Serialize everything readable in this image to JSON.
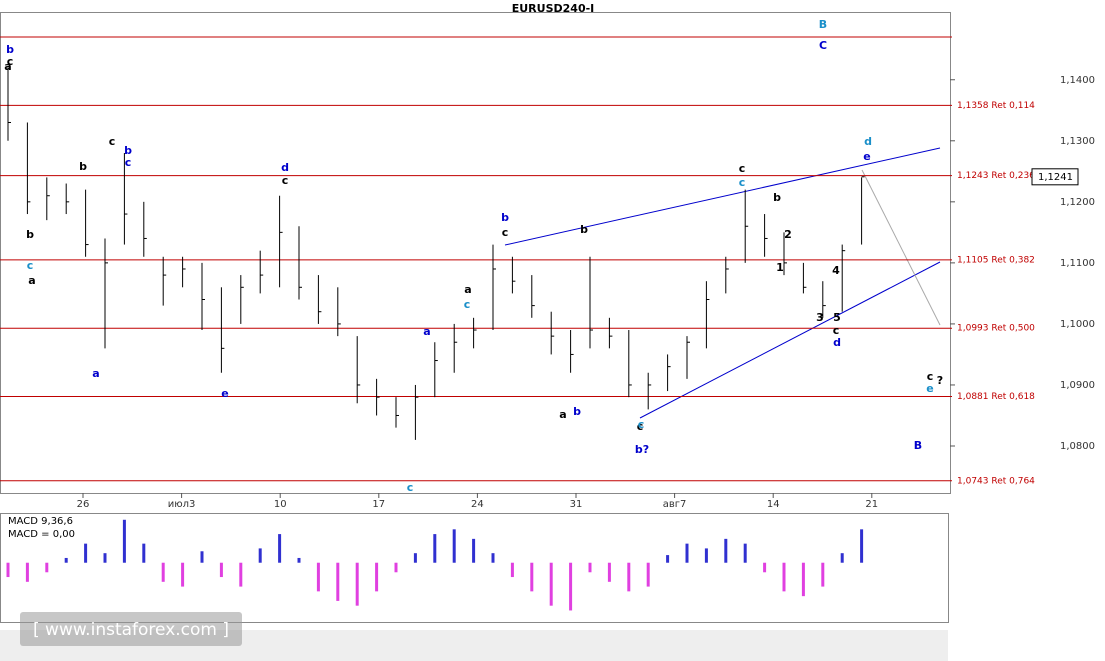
{
  "chart_data": {
    "type": "ohlc",
    "title": "EURUSD240-I",
    "ylim": [
      1.0723,
      1.1511
    ],
    "yticks": [
      {
        "value": 1.14,
        "label": "1,1400"
      },
      {
        "value": 1.13,
        "label": "1,1300"
      },
      {
        "value": 1.12,
        "label": "1,1200"
      },
      {
        "value": 1.11,
        "label": "1,1100"
      },
      {
        "value": 1.1,
        "label": "1,1000"
      },
      {
        "value": 1.09,
        "label": "1,0900"
      },
      {
        "value": 1.08,
        "label": "1,0800"
      }
    ],
    "categories": [
      "26",
      "июл3",
      "10",
      "17",
      "24",
      "31",
      "авг7",
      "14",
      "21"
    ],
    "high": [
      1.142,
      1.133,
      1.124,
      1.123,
      1.122,
      1.114,
      1.128,
      1.12,
      1.111,
      1.111,
      1.11,
      1.106,
      1.108,
      1.112,
      1.121,
      1.116,
      1.108,
      1.106,
      1.098,
      1.091,
      1.088,
      1.09,
      1.097,
      1.1,
      1.101,
      1.113,
      1.111,
      1.108,
      1.102,
      1.099,
      1.111,
      1.101,
      1.099,
      1.092,
      1.095,
      1.098,
      1.107,
      1.111,
      1.122,
      1.118,
      1.115,
      1.11,
      1.107,
      1.113,
      1.124
    ],
    "low": [
      1.13,
      1.118,
      1.117,
      1.118,
      1.111,
      1.096,
      1.113,
      1.111,
      1.103,
      1.106,
      1.099,
      1.092,
      1.1,
      1.105,
      1.106,
      1.104,
      1.1,
      1.098,
      1.087,
      1.085,
      1.083,
      1.081,
      1.088,
      1.092,
      1.096,
      1.099,
      1.105,
      1.101,
      1.095,
      1.092,
      1.096,
      1.096,
      1.088,
      1.086,
      1.089,
      1.091,
      1.096,
      1.105,
      1.11,
      1.111,
      1.108,
      1.105,
      1.101,
      1.102,
      1.113
    ],
    "close": [
      1.133,
      1.12,
      1.121,
      1.12,
      1.113,
      1.11,
      1.118,
      1.114,
      1.108,
      1.109,
      1.104,
      1.096,
      1.106,
      1.108,
      1.115,
      1.106,
      1.102,
      1.1,
      1.09,
      1.088,
      1.085,
      1.088,
      1.094,
      1.097,
      1.099,
      1.109,
      1.107,
      1.103,
      1.098,
      1.095,
      1.099,
      1.098,
      1.09,
      1.09,
      1.093,
      1.097,
      1.104,
      1.109,
      1.116,
      1.114,
      1.11,
      1.106,
      1.103,
      1.112,
      1.1241
    ],
    "levels": [
      {
        "value": 1.147
      },
      {
        "value": 1.1358,
        "label": "1,1358 Ret 0,114"
      },
      {
        "value": 1.1243,
        "label": "1,1243 Ret 0,236"
      },
      {
        "value": 1.1105,
        "label": "1,1105 Ret 0,382"
      },
      {
        "value": 1.0993,
        "label": "1,0993 Ret 0,500"
      },
      {
        "value": 1.0881,
        "label": "1,0881 Ret 0,618"
      },
      {
        "value": 1.0743,
        "label": "1,0743 Ret 0,764"
      }
    ],
    "current_price": {
      "value": 1.1241,
      "label": "1,1241"
    },
    "macd_title": "MACD 9,36,6",
    "macd_value": "MACD = 0,00",
    "macd_ylim": [
      -0.006,
      0.005
    ],
    "macd": [
      -0.0015,
      -0.002,
      -0.001,
      0.0005,
      0.002,
      0.001,
      0.0045,
      0.002,
      -0.002,
      -0.0025,
      0.0012,
      -0.0015,
      -0.0025,
      0.0015,
      0.003,
      0.0005,
      -0.003,
      -0.004,
      -0.0045,
      -0.003,
      -0.001,
      0.001,
      0.003,
      0.0035,
      0.0025,
      0.001,
      -0.0015,
      -0.003,
      -0.0045,
      -0.005,
      -0.001,
      -0.002,
      -0.003,
      -0.0025,
      0.0008,
      0.002,
      0.0015,
      0.0025,
      0.002,
      -0.001,
      -0.003,
      -0.0035,
      -0.0025,
      0.001,
      0.0035
    ],
    "waves": [
      {
        "text": "b",
        "color": "#0000cc"
      },
      {
        "text": "a",
        "color": "#000"
      },
      {
        "text": "c",
        "color": "#000"
      },
      {
        "text": "b",
        "color": "#000"
      },
      {
        "text": "c",
        "color": "#1a8fc9"
      },
      {
        "text": "a",
        "color": "#000"
      },
      {
        "text": "a",
        "color": "#0000cc"
      },
      {
        "text": "b",
        "color": "#000"
      },
      {
        "text": "c",
        "color": "#000"
      },
      {
        "text": "b",
        "color": "#0000cc"
      },
      {
        "text": "c",
        "color": "#0000cc"
      },
      {
        "text": "d",
        "color": "#0000cc"
      },
      {
        "text": "c",
        "color": "#000"
      },
      {
        "text": "e",
        "color": "#0000cc"
      },
      {
        "text": "c",
        "color": "#1a8fc9"
      },
      {
        "text": "a",
        "color": "#0000cc"
      },
      {
        "text": "c",
        "color": "#000"
      },
      {
        "text": "b",
        "color": "#000"
      },
      {
        "text": "a",
        "color": "#000"
      },
      {
        "text": "b",
        "color": "#0000cc"
      },
      {
        "text": "c",
        "color": "#1a8fc9"
      },
      {
        "text": "c",
        "color": "#000"
      },
      {
        "text": "b",
        "color": "#0000cc"
      },
      {
        "text": "a",
        "color": "#000"
      },
      {
        "text": "c",
        "color": "#1a8fc9"
      },
      {
        "text": "c",
        "color": "#000"
      },
      {
        "text": "c",
        "color": "#1a8fc9"
      },
      {
        "text": "b",
        "color": "#000"
      },
      {
        "text": "d",
        "color": "#1a8fc9"
      },
      {
        "text": "e",
        "color": "#0000cc"
      },
      {
        "text": "c",
        "color": "#000"
      },
      {
        "text": "d",
        "color": "#0000cc"
      },
      {
        "text": "B",
        "color": "#1a8fc9"
      },
      {
        "text": "C",
        "color": "#0000cc"
      },
      {
        "text": "B",
        "color": "#0000cc"
      },
      {
        "text": "c",
        "color": "#000"
      },
      {
        "text": "e",
        "color": "#1a8fc9"
      },
      {
        "text": "?",
        "color": "#000"
      },
      {
        "text": "b?",
        "color": "#0000cc"
      },
      {
        "text": "1",
        "color": "#000"
      },
      {
        "text": "2",
        "color": "#000"
      },
      {
        "text": "3",
        "color": "#000"
      },
      {
        "text": "4",
        "color": "#000"
      },
      {
        "text": "5",
        "color": "#000"
      }
    ],
    "watermark": "[ www.instaforex.com ]"
  }
}
